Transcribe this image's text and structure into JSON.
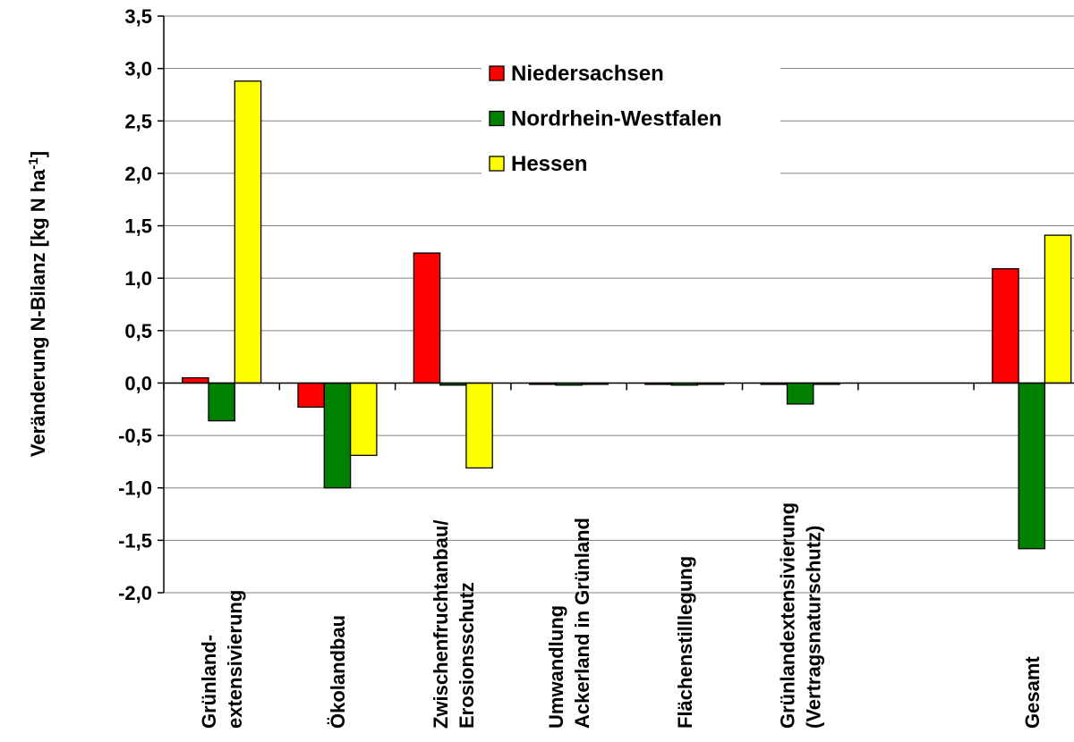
{
  "chart_data": {
    "type": "bar",
    "y_label": "Veränderung N-Bilanz [kg N ha",
    "y_label_sup": "-1",
    "y_label_end": "]",
    "categories": [
      [
        "Grünland-",
        "extensivierung"
      ],
      [
        "Ökolandbau"
      ],
      [
        "Zwischenfruchtanbau/",
        "Erosionsschutz"
      ],
      [
        "Umwandlung",
        "Ackerland in Grünland"
      ],
      [
        "Flächenstilllegung"
      ],
      [
        "Grünlandextensivierung",
        "(Vertragsnaturschutz)"
      ],
      null,
      [
        "Gesamt"
      ]
    ],
    "series": [
      {
        "name": "Niedersachsen",
        "color": "#ff0000",
        "values": [
          0.05,
          -0.23,
          1.24,
          0,
          0,
          0,
          null,
          1.09
        ]
      },
      {
        "name": "Nordrhein-Westfalen",
        "color": "#008000",
        "values": [
          -0.36,
          -1.0,
          -0.02,
          -0.02,
          -0.02,
          -0.2,
          null,
          -1.58
        ]
      },
      {
        "name": "Hessen",
        "color": "#ffff00",
        "values": [
          2.88,
          -0.69,
          -0.81,
          0,
          0,
          0,
          null,
          1.41
        ]
      }
    ],
    "ylim": [
      -2.0,
      3.5
    ],
    "yticks": [
      {
        "value": -2.0,
        "label": "-2,0"
      },
      {
        "value": -1.5,
        "label": "-1,5"
      },
      {
        "value": -1.0,
        "label": "-1,0"
      },
      {
        "value": -0.5,
        "label": "-0,5"
      },
      {
        "value": 0.0,
        "label": "0,0"
      },
      {
        "value": 0.5,
        "label": "0,5"
      },
      {
        "value": 1.0,
        "label": "1,0"
      },
      {
        "value": 1.5,
        "label": "1,5"
      },
      {
        "value": 2.0,
        "label": "2,0"
      },
      {
        "value": 2.5,
        "label": "2,5"
      },
      {
        "value": 3.0,
        "label": "3,0"
      },
      {
        "value": 3.5,
        "label": "3,5"
      }
    ],
    "grid": true,
    "legend": "top"
  }
}
